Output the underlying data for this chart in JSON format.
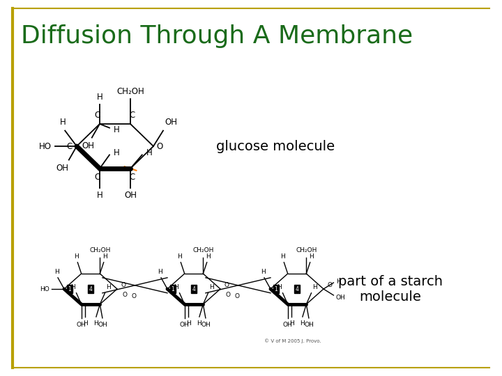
{
  "title": "Diffusion Through A Membrane",
  "title_color": "#1a6b1a",
  "title_fontsize": 26,
  "background_color": "#ffffff",
  "border_color": "#B8A000",
  "label_glucose": "glucose molecule",
  "label_starch": "part of a starch\nmolecule",
  "label_fontsize": 14,
  "label_color": "#000000"
}
